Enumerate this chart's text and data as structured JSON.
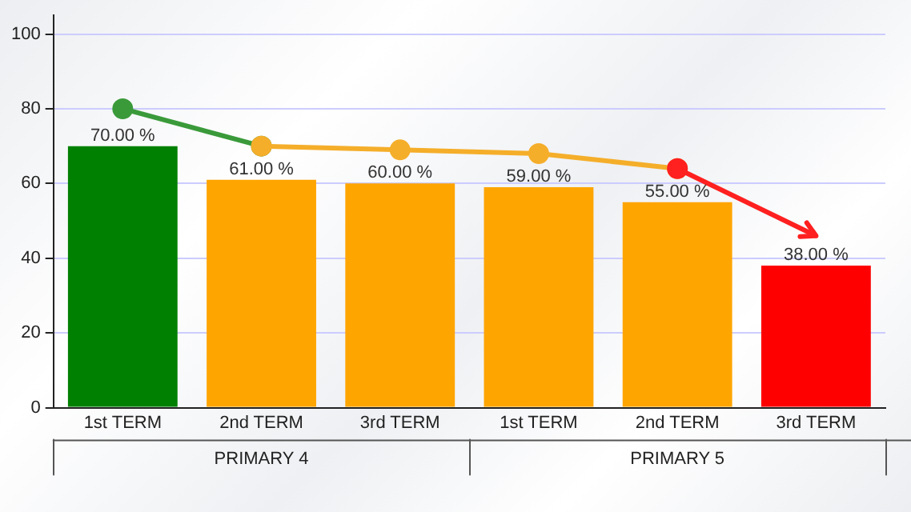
{
  "chart_data": {
    "type": "bar",
    "categories": [
      "1st TERM",
      "2nd TERM",
      "3rd TERM",
      "1st TERM",
      "2nd TERM",
      "3rd TERM"
    ],
    "series": [
      {
        "values": [
          70,
          61,
          60,
          59,
          55,
          38
        ],
        "colors": [
          "#008000",
          "#ffa500",
          "#ffa500",
          "#ffa500",
          "#ffa500",
          "#ff0000"
        ],
        "value_labels": [
          "70.00 %",
          "61.00 %",
          "60.00 %",
          "59.00 %",
          "55.00 %",
          "38.00 %"
        ]
      },
      {
        "type": "line",
        "values": [
          80,
          70,
          null,
          null,
          null,
          null
        ],
        "color": "#3a9a3a",
        "marker": "circle"
      },
      {
        "type": "line",
        "values": [
          null,
          70,
          69,
          68,
          64,
          null
        ],
        "color": "#f5ae2a",
        "marker": "circle"
      },
      {
        "type": "line",
        "values": [
          null,
          null,
          null,
          null,
          64,
          46
        ],
        "color": "#ff2020",
        "marker": "circle"
      }
    ],
    "annotations": [
      "PRIMARY 4",
      "PRIMARY 5"
    ],
    "ylim": [
      0,
      105
    ],
    "yticks": [
      0,
      20,
      40,
      60,
      80,
      100
    ],
    "grid": "y",
    "legend": false
  }
}
